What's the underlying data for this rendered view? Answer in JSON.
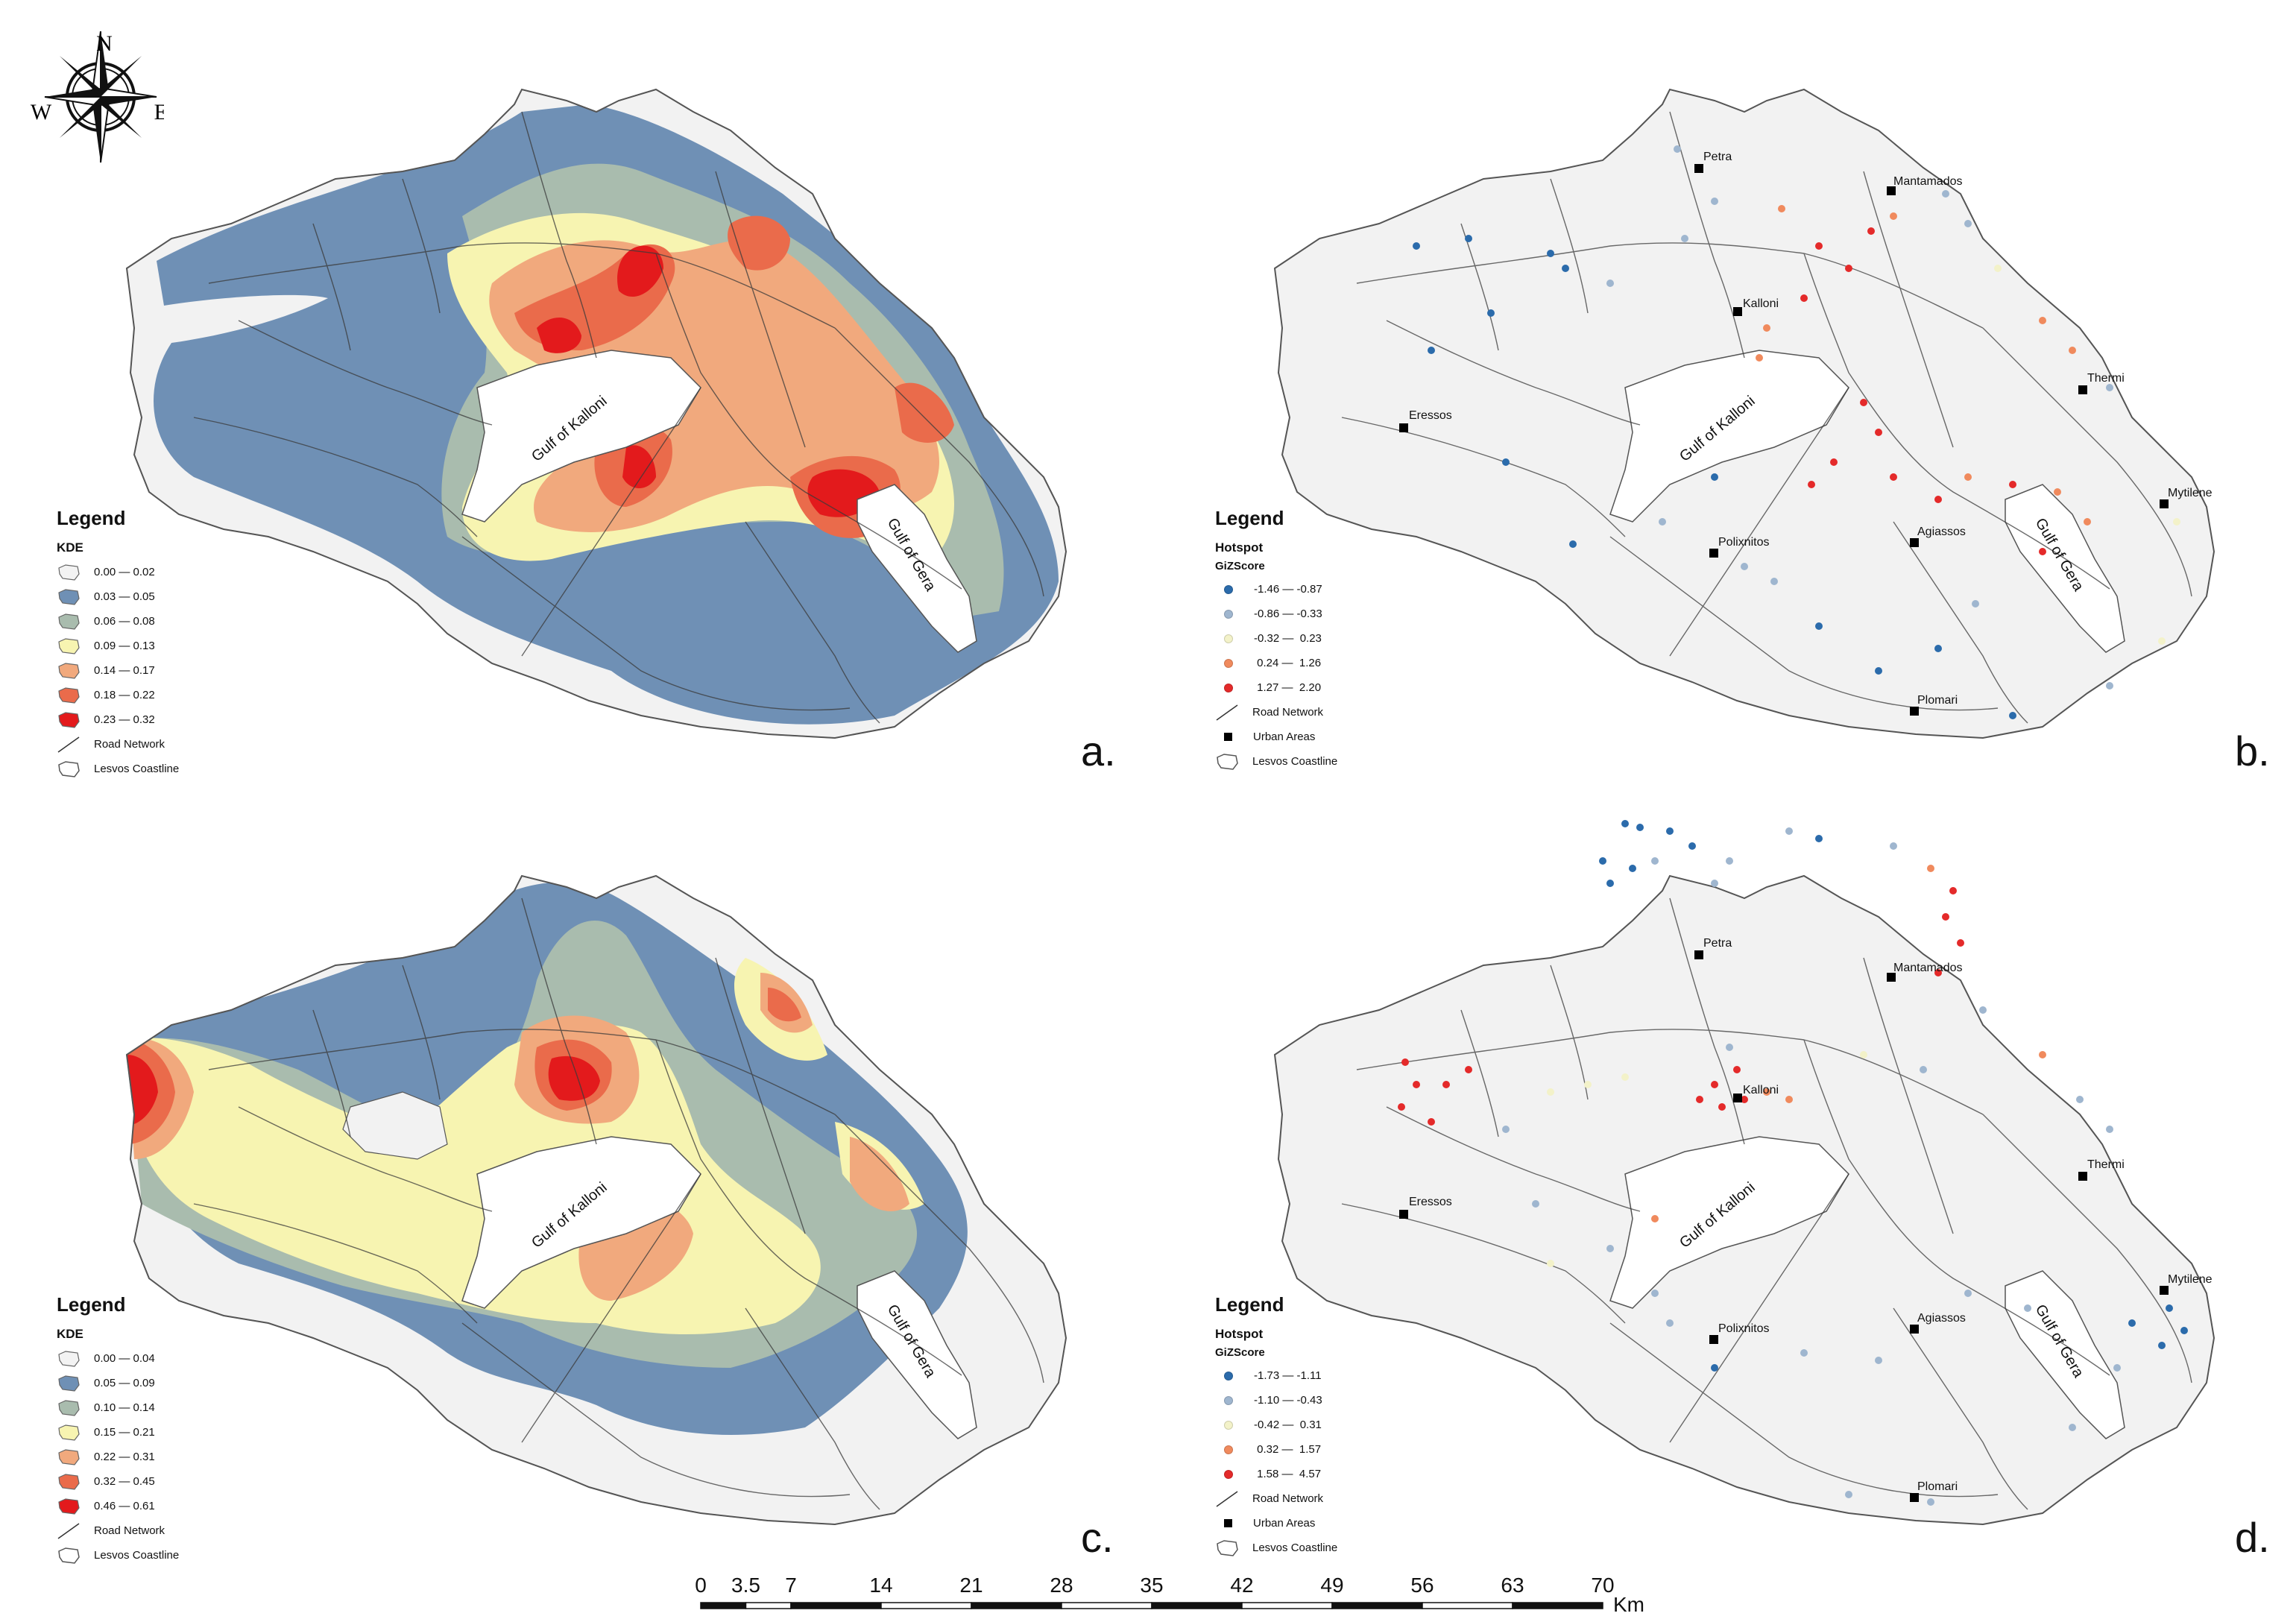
{
  "compass": {
    "north": "N",
    "south": "S",
    "east": "E",
    "west": "W",
    "icon": "compass-rose-icon"
  },
  "colors": {
    "kde_0": "#f3f3f3",
    "kde_1": "#6f90b5",
    "kde_2": "#a9bcae",
    "kde_3": "#f7f4b1",
    "kde_4": "#f1a97d",
    "kde_5": "#ea6b4b",
    "kde_6": "#e31a1c",
    "hot_1": "#2b6bab",
    "hot_2": "#9fb6cf",
    "hot_3": "#f3f2c9",
    "hot_4": "#f08a5d",
    "hot_5": "#e42a2a",
    "land": "#f2f2f2",
    "road": "#3a3a3a"
  },
  "places": {
    "gulf_kalloni": "Gulf of Kalloni",
    "gulf_gera": "Gulf of Gera",
    "petra": "Petra",
    "mantamados": "Mantamados",
    "kalloni": "Kalloni",
    "thermi": "Thermi",
    "eressos": "Eressos",
    "mytilene": "Mytilene",
    "polixnitos": "Polixnitos",
    "agiassos": "Agiassos",
    "plomari": "Plomari"
  },
  "panels": {
    "a": {
      "letter": "a.",
      "legend": {
        "title": "Legend",
        "subtitle": "KDE",
        "classes": [
          "0.00 — 0.02",
          "0.03 — 0.05",
          "0.06 — 0.08",
          "0.09 — 0.13",
          "0.14 — 0.17",
          "0.18 — 0.22",
          "0.23 — 0.32"
        ],
        "road": "Road Network",
        "coast": "Lesvos Coastline"
      }
    },
    "b": {
      "letter": "b.",
      "legend": {
        "title": "Legend",
        "subtitle": "Hotspot",
        "subtitle2": "GiZScore",
        "classes": [
          "-1.46 — -0.87",
          "-0.86 — -0.33",
          "-0.32 —  0.23",
          " 0.24 —  1.26",
          " 1.27 —  2.20"
        ],
        "road": "Road Network",
        "urban": "Urban Areas",
        "coast": "Lesvos Coastline"
      }
    },
    "c": {
      "letter": "c.",
      "legend": {
        "title": "Legend",
        "subtitle": "KDE",
        "classes": [
          "0.00 — 0.04",
          "0.05 — 0.09",
          "0.10 — 0.14",
          "0.15 — 0.21",
          "0.22 — 0.31",
          "0.32 — 0.45",
          "0.46 — 0.61"
        ],
        "road": "Road Network",
        "coast": "Lesvos Coastline"
      }
    },
    "d": {
      "letter": "d.",
      "legend": {
        "title": "Legend",
        "subtitle": "Hotspot",
        "subtitle2": "GiZScore",
        "classes": [
          "-1.73 — -1.11",
          "-1.10 — -0.43",
          "-0.42 —  0.31",
          " 0.32 —  1.57",
          " 1.58 —  4.57"
        ],
        "road": "Road Network",
        "urban": "Urban Areas",
        "coast": "Lesvos Coastline"
      }
    }
  },
  "scale": {
    "ticks": [
      "0",
      "3.5",
      "7",
      "14",
      "21",
      "28",
      "35",
      "42",
      "49",
      "56",
      "63",
      "70"
    ],
    "unit": "Km"
  }
}
